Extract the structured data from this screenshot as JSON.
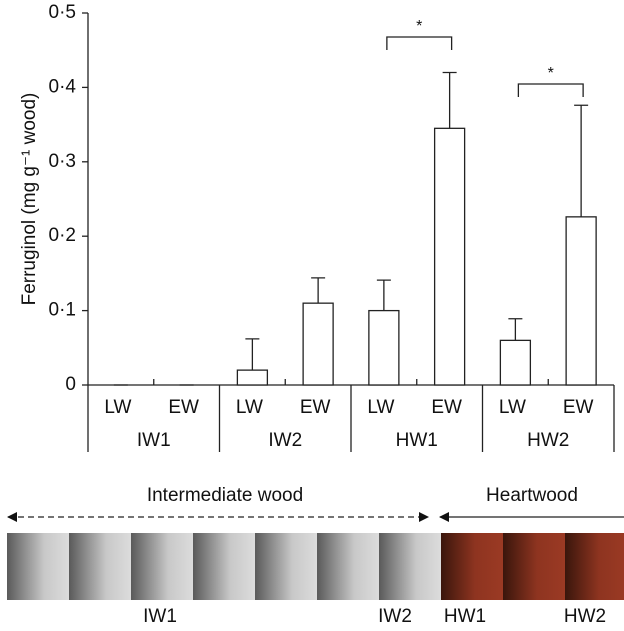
{
  "chart_data": {
    "type": "bar",
    "y_label": "Ferruginol (mg g⁻¹ wood)",
    "categories": [
      "LW",
      "EW",
      "LW",
      "EW",
      "LW",
      "EW",
      "LW",
      "EW"
    ],
    "groups": [
      "IW1",
      "IW2",
      "HW1",
      "HW2"
    ],
    "values": [
      0,
      0,
      0.02,
      0.11,
      0.1,
      0.345,
      0.06,
      0.226
    ],
    "errors": [
      0,
      0,
      0.042,
      0.034,
      0.041,
      0.075,
      0.029,
      0.15
    ],
    "color": "#ffffff",
    "ylim": [
      0,
      0.5
    ],
    "yticks": [
      0,
      {
        "value": 0.1,
        "label": "0·1"
      },
      {
        "value": 0.2,
        "label": "0·2"
      },
      {
        "value": 0.3,
        "label": "0·3"
      },
      {
        "value": 0.4,
        "label": "0·4"
      },
      {
        "value": 0.5,
        "label": "0·5"
      }
    ],
    "annotations": [
      "*",
      "*"
    ]
  },
  "diagram": {
    "left_label": "Intermediate wood",
    "right_label": "Heartwood",
    "ring_labels": [
      "IW1",
      "IW2",
      "HW1",
      "HW2"
    ]
  }
}
